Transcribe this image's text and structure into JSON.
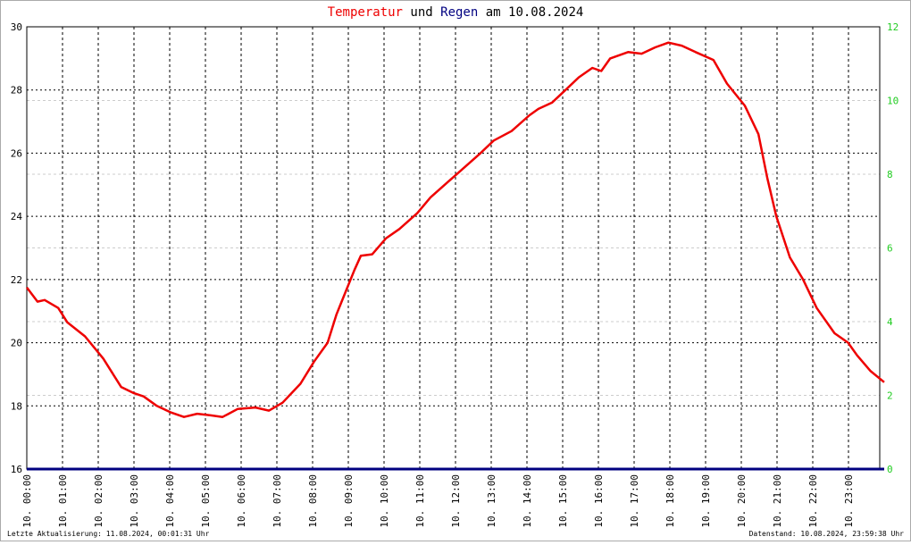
{
  "chart_data": {
    "type": "line",
    "title_parts": [
      "Temperatur",
      "und",
      "Regen",
      "am 10.08.2024"
    ],
    "footer_left": "Letzte Aktualisierung: 11.08.2024, 00:01:31 Uhr",
    "footer_right": "Datenstand: 10.08.2024, 23:59:38 Uhr",
    "xlim": [
      0,
      24
    ],
    "xticks": [
      {
        "value": 0,
        "label": "10. 00:00"
      },
      {
        "value": 1,
        "label": "10. 01:00"
      },
      {
        "value": 2,
        "label": "10. 02:00"
      },
      {
        "value": 3,
        "label": "10. 03:00"
      },
      {
        "value": 4,
        "label": "10. 04:00"
      },
      {
        "value": 5,
        "label": "10. 05:00"
      },
      {
        "value": 6,
        "label": "10. 06:00"
      },
      {
        "value": 7,
        "label": "10. 07:00"
      },
      {
        "value": 8,
        "label": "10. 08:00"
      },
      {
        "value": 9,
        "label": "10. 09:00"
      },
      {
        "value": 10,
        "label": "10. 10:00"
      },
      {
        "value": 11,
        "label": "10. 11:00"
      },
      {
        "value": 12,
        "label": "10. 12:00"
      },
      {
        "value": 13,
        "label": "10. 13:00"
      },
      {
        "value": 14,
        "label": "10. 14:00"
      },
      {
        "value": 15,
        "label": "10. 15:00"
      },
      {
        "value": 16,
        "label": "10. 16:00"
      },
      {
        "value": 17,
        "label": "10. 17:00"
      },
      {
        "value": 18,
        "label": "10. 18:00"
      },
      {
        "value": 19,
        "label": "10. 19:00"
      },
      {
        "value": 20,
        "label": "10. 20:00"
      },
      {
        "value": 21,
        "label": "10. 21:00"
      },
      {
        "value": 22,
        "label": "10. 22:00"
      },
      {
        "value": 23,
        "label": "10. 23:00"
      }
    ],
    "ylim": [
      16,
      30
    ],
    "yticks": [
      16,
      18,
      20,
      22,
      24,
      26,
      28,
      30
    ],
    "y2lim": [
      0,
      12
    ],
    "y2ticks": [
      0,
      2,
      4,
      6,
      8,
      10,
      12
    ],
    "grid": true,
    "series": [
      {
        "name": "Temperatur",
        "color": "#ee0000",
        "x": [
          0,
          0.3,
          0.5,
          0.88,
          1.13,
          1.63,
          2.14,
          2.64,
          3.0,
          3.27,
          3.64,
          4.02,
          4.4,
          4.77,
          5.15,
          5.48,
          5.9,
          6.4,
          6.78,
          7.16,
          7.66,
          8.04,
          8.42,
          8.67,
          8.92,
          9.17,
          9.35,
          9.67,
          10.05,
          10.43,
          10.93,
          11.3,
          11.8,
          12.3,
          12.7,
          13.07,
          13.57,
          14.07,
          14.32,
          14.7,
          15.08,
          15.45,
          15.83,
          16.08,
          16.33,
          16.83,
          17.21,
          17.59,
          17.96,
          18.34,
          18.72,
          19.22,
          19.6,
          20.1,
          20.48,
          20.73,
          20.98,
          21.36,
          21.73,
          22.11,
          22.61,
          22.99,
          23.24,
          23.62,
          24.0
        ],
        "values": [
          21.75,
          21.3,
          21.35,
          21.1,
          20.65,
          20.2,
          19.5,
          18.6,
          18.4,
          18.3,
          18.0,
          17.8,
          17.65,
          17.75,
          17.7,
          17.65,
          17.9,
          17.95,
          17.85,
          18.1,
          18.7,
          19.4,
          20.0,
          20.9,
          21.6,
          22.3,
          22.75,
          22.8,
          23.3,
          23.6,
          24.1,
          24.6,
          25.1,
          25.6,
          26.0,
          26.4,
          26.7,
          27.2,
          27.4,
          27.6,
          28.0,
          28.4,
          28.7,
          28.6,
          29.0,
          29.2,
          29.15,
          29.35,
          29.5,
          29.4,
          29.2,
          28.95,
          28.2,
          27.5,
          26.6,
          25.2,
          24.0,
          22.7,
          22.0,
          21.1,
          20.3,
          20.0,
          19.6,
          19.1,
          18.75
        ]
      },
      {
        "name": "Regen",
        "color": "#000080",
        "axis": "y2",
        "x": [
          0,
          24
        ],
        "values": [
          0,
          0
        ]
      }
    ]
  }
}
